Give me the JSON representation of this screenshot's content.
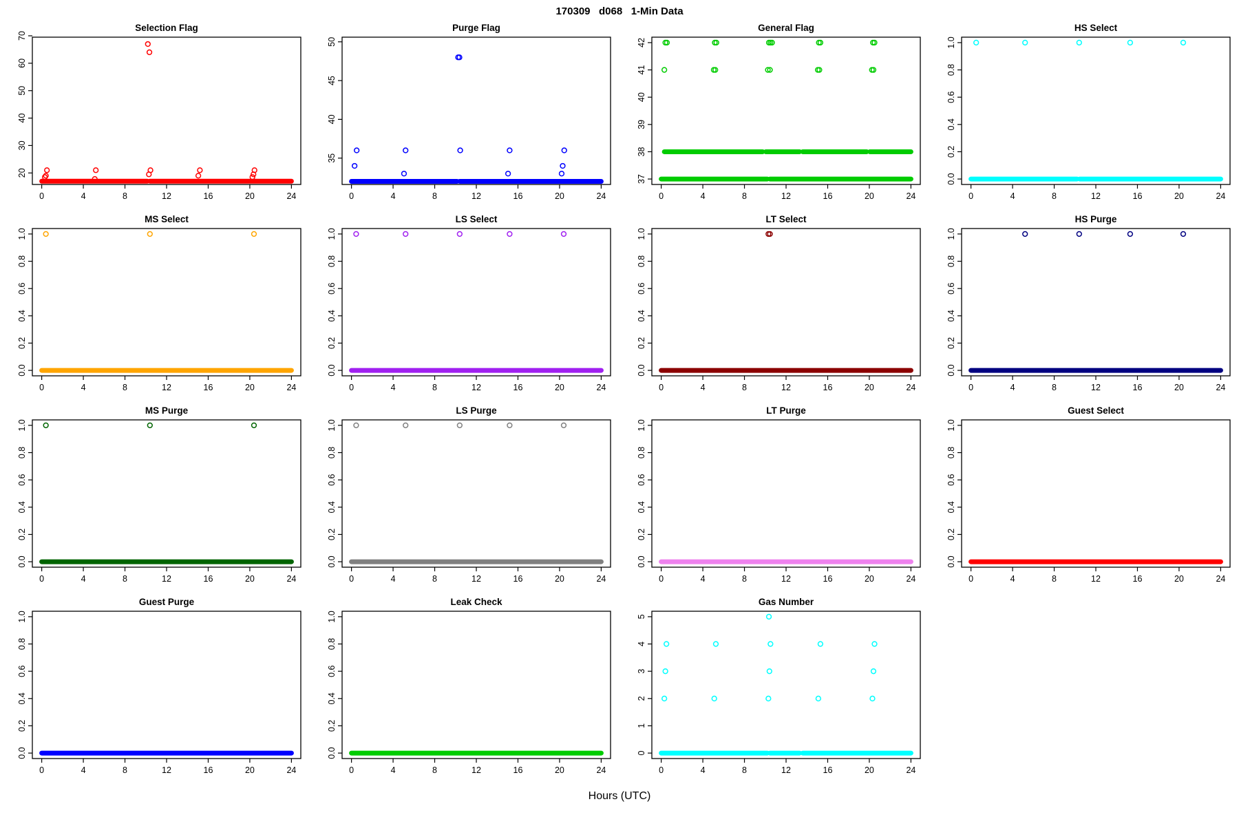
{
  "figure_title": "170309   d068   1-Min Data",
  "x_axis_label": "Hours (UTC)",
  "layout": {
    "grid_columns": 4,
    "grid_rows": 4,
    "background": "#ffffff"
  },
  "chart_data": [
    {
      "type": "scatter",
      "title": "Selection Flag",
      "color": "#FF0000",
      "xlim": [
        -0.9,
        24.9
      ],
      "xticks": [
        0,
        4,
        8,
        12,
        16,
        20,
        24
      ],
      "ylim": [
        15.8,
        69.5
      ],
      "yticks": [
        20,
        30,
        40,
        50,
        60,
        70
      ],
      "ytick_labels": [
        "20",
        "30",
        "40",
        "50",
        "60",
        "70"
      ],
      "baselines": [
        {
          "y": 17,
          "spans": [
            [
              0,
              10.15
            ],
            [
              10.4,
              24
            ]
          ]
        }
      ],
      "points": [
        [
          0.3,
          18.5
        ],
        [
          0.4,
          19
        ],
        [
          0.5,
          21
        ],
        [
          5.1,
          17.8
        ],
        [
          5.2,
          21
        ],
        [
          10.2,
          67
        ],
        [
          10.35,
          64
        ],
        [
          10.3,
          19.5
        ],
        [
          10.45,
          21
        ],
        [
          15.05,
          19
        ],
        [
          15.2,
          21
        ],
        [
          20.25,
          18.5
        ],
        [
          20.35,
          19.5
        ],
        [
          20.45,
          21
        ]
      ]
    },
    {
      "type": "scatter",
      "title": "Purge Flag",
      "color": "#0000FF",
      "xlim": [
        -0.9,
        24.9
      ],
      "xticks": [
        0,
        4,
        8,
        12,
        16,
        20,
        24
      ],
      "ylim": [
        31.6,
        50.6
      ],
      "yticks": [
        35,
        40,
        45,
        50
      ],
      "ytick_labels": [
        "35",
        "40",
        "45",
        "50"
      ],
      "baselines": [
        {
          "y": 32,
          "spans": [
            [
              0,
              10.15
            ],
            [
              10.4,
              24
            ]
          ]
        }
      ],
      "points": [
        [
          0.3,
          34
        ],
        [
          0.5,
          36
        ],
        [
          5.05,
          33
        ],
        [
          5.2,
          36
        ],
        [
          10.25,
          48
        ],
        [
          10.38,
          48
        ],
        [
          10.45,
          36
        ],
        [
          15.05,
          33
        ],
        [
          15.2,
          36
        ],
        [
          20.2,
          33
        ],
        [
          20.3,
          34
        ],
        [
          20.45,
          36
        ]
      ]
    },
    {
      "type": "scatter",
      "title": "General Flag",
      "color": "#00CC00",
      "xlim": [
        -0.9,
        24.9
      ],
      "xticks": [
        0,
        4,
        8,
        12,
        16,
        20,
        24
      ],
      "ylim": [
        36.8,
        42.2
      ],
      "yticks": [
        37,
        38,
        39,
        40,
        41,
        42
      ],
      "ytick_labels": [
        "37",
        "38",
        "39",
        "40",
        "41",
        "42"
      ],
      "baselines": [
        {
          "y": 38,
          "spans": [
            [
              0.3,
              9.75
            ],
            [
              10.05,
              13.3
            ],
            [
              13.6,
              19.75
            ],
            [
              20.05,
              24
            ]
          ]
        },
        {
          "y": 37,
          "spans": [
            [
              0,
              10.2
            ],
            [
              10.45,
              24
            ]
          ]
        }
      ],
      "points": [
        [
          0.4,
          42
        ],
        [
          0.55,
          42
        ],
        [
          5.15,
          42
        ],
        [
          5.3,
          42
        ],
        [
          10.35,
          42
        ],
        [
          10.5,
          42
        ],
        [
          10.65,
          42
        ],
        [
          15.15,
          42
        ],
        [
          15.3,
          42
        ],
        [
          20.35,
          42
        ],
        [
          20.5,
          42
        ],
        [
          0.3,
          41
        ],
        [
          5.05,
          41
        ],
        [
          5.2,
          41
        ],
        [
          10.25,
          41
        ],
        [
          10.45,
          41
        ],
        [
          15.05,
          41
        ],
        [
          15.2,
          41
        ],
        [
          20.25,
          41
        ],
        [
          20.4,
          41
        ]
      ]
    },
    {
      "type": "scatter",
      "title": "HS Select",
      "color": "#00FFFF",
      "xlim": [
        -0.9,
        24.9
      ],
      "xticks": [
        0,
        4,
        8,
        12,
        16,
        20,
        24
      ],
      "ylim": [
        -0.04,
        1.04
      ],
      "yticks": [
        0,
        0.2,
        0.4,
        0.6,
        0.8,
        1.0
      ],
      "ytick_labels": [
        "0.0",
        "0.2",
        "0.4",
        "0.6",
        "0.8",
        "1.0"
      ],
      "baselines": [
        {
          "y": 0,
          "spans": [
            [
              0,
              10.2
            ],
            [
              10.45,
              24
            ]
          ]
        }
      ],
      "points": [
        [
          0.5,
          1
        ],
        [
          5.2,
          1
        ],
        [
          10.4,
          1
        ],
        [
          15.3,
          1
        ],
        [
          20.4,
          1
        ]
      ]
    },
    {
      "type": "scatter",
      "title": "MS Select",
      "color": "#FFA500",
      "xlim": [
        -0.9,
        24.9
      ],
      "xticks": [
        0,
        4,
        8,
        12,
        16,
        20,
        24
      ],
      "ylim": [
        -0.04,
        1.04
      ],
      "yticks": [
        0,
        0.2,
        0.4,
        0.6,
        0.8,
        1.0
      ],
      "ytick_labels": [
        "0.0",
        "0.2",
        "0.4",
        "0.6",
        "0.8",
        "1.0"
      ],
      "baselines": [
        {
          "y": 0,
          "spans": [
            [
              0,
              24
            ]
          ]
        }
      ],
      "points": [
        [
          0.4,
          1
        ],
        [
          10.4,
          1
        ],
        [
          20.4,
          1
        ]
      ]
    },
    {
      "type": "scatter",
      "title": "LS Select",
      "color": "#A020F0",
      "xlim": [
        -0.9,
        24.9
      ],
      "xticks": [
        0,
        4,
        8,
        12,
        16,
        20,
        24
      ],
      "ylim": [
        -0.04,
        1.04
      ],
      "yticks": [
        0,
        0.2,
        0.4,
        0.6,
        0.8,
        1.0
      ],
      "ytick_labels": [
        "0.0",
        "0.2",
        "0.4",
        "0.6",
        "0.8",
        "1.0"
      ],
      "baselines": [
        {
          "y": 0,
          "spans": [
            [
              0,
              24
            ]
          ]
        }
      ],
      "points": [
        [
          0.45,
          1
        ],
        [
          5.2,
          1
        ],
        [
          10.4,
          1
        ],
        [
          15.2,
          1
        ],
        [
          20.4,
          1
        ]
      ]
    },
    {
      "type": "scatter",
      "title": "LT Select",
      "color": "#8B0000",
      "xlim": [
        -0.9,
        24.9
      ],
      "xticks": [
        0,
        4,
        8,
        12,
        16,
        20,
        24
      ],
      "ylim": [
        -0.04,
        1.04
      ],
      "yticks": [
        0,
        0.2,
        0.4,
        0.6,
        0.8,
        1.0
      ],
      "ytick_labels": [
        "0.0",
        "0.2",
        "0.4",
        "0.6",
        "0.8",
        "1.0"
      ],
      "baselines": [
        {
          "y": 0,
          "spans": [
            [
              0,
              24
            ]
          ]
        }
      ],
      "points": [
        [
          10.3,
          1
        ],
        [
          10.45,
          1
        ]
      ]
    },
    {
      "type": "scatter",
      "title": "HS Purge",
      "color": "#000080",
      "xlim": [
        -0.9,
        24.9
      ],
      "xticks": [
        0,
        4,
        8,
        12,
        16,
        20,
        24
      ],
      "ylim": [
        -0.04,
        1.04
      ],
      "yticks": [
        0,
        0.2,
        0.4,
        0.6,
        0.8,
        1.0
      ],
      "ytick_labels": [
        "0.0",
        "0.2",
        "0.4",
        "0.6",
        "0.8",
        "1.0"
      ],
      "baselines": [
        {
          "y": 0,
          "spans": [
            [
              0,
              24
            ]
          ]
        }
      ],
      "points": [
        [
          5.2,
          1
        ],
        [
          10.4,
          1
        ],
        [
          15.3,
          1
        ],
        [
          20.4,
          1
        ]
      ]
    },
    {
      "type": "scatter",
      "title": "MS Purge",
      "color": "#006400",
      "xlim": [
        -0.9,
        24.9
      ],
      "xticks": [
        0,
        4,
        8,
        12,
        16,
        20,
        24
      ],
      "ylim": [
        -0.04,
        1.04
      ],
      "yticks": [
        0,
        0.2,
        0.4,
        0.6,
        0.8,
        1.0
      ],
      "ytick_labels": [
        "0.0",
        "0.2",
        "0.4",
        "0.6",
        "0.8",
        "1.0"
      ],
      "baselines": [
        {
          "y": 0,
          "spans": [
            [
              0,
              24
            ]
          ]
        }
      ],
      "points": [
        [
          0.4,
          1
        ],
        [
          10.4,
          1
        ],
        [
          20.4,
          1
        ]
      ]
    },
    {
      "type": "scatter",
      "title": "LS Purge",
      "color": "#808080",
      "xlim": [
        -0.9,
        24.9
      ],
      "xticks": [
        0,
        4,
        8,
        12,
        16,
        20,
        24
      ],
      "ylim": [
        -0.04,
        1.04
      ],
      "yticks": [
        0,
        0.2,
        0.4,
        0.6,
        0.8,
        1.0
      ],
      "ytick_labels": [
        "0.0",
        "0.2",
        "0.4",
        "0.6",
        "0.8",
        "1.0"
      ],
      "baselines": [
        {
          "y": 0,
          "spans": [
            [
              0,
              24
            ]
          ]
        }
      ],
      "points": [
        [
          0.45,
          1
        ],
        [
          5.2,
          1
        ],
        [
          10.4,
          1
        ],
        [
          15.2,
          1
        ],
        [
          20.4,
          1
        ]
      ]
    },
    {
      "type": "scatter",
      "title": "LT Purge",
      "color": "#EE82EE",
      "xlim": [
        -0.9,
        24.9
      ],
      "xticks": [
        0,
        4,
        8,
        12,
        16,
        20,
        24
      ],
      "ylim": [
        -0.04,
        1.04
      ],
      "yticks": [
        0,
        0.2,
        0.4,
        0.6,
        0.8,
        1.0
      ],
      "ytick_labels": [
        "0.0",
        "0.2",
        "0.4",
        "0.6",
        "0.8",
        "1.0"
      ],
      "baselines": [
        {
          "y": 0,
          "spans": [
            [
              0,
              24
            ]
          ]
        }
      ],
      "points": []
    },
    {
      "type": "scatter",
      "title": "Guest Select",
      "color": "#FF0000",
      "xlim": [
        -0.9,
        24.9
      ],
      "xticks": [
        0,
        4,
        8,
        12,
        16,
        20,
        24
      ],
      "ylim": [
        -0.04,
        1.04
      ],
      "yticks": [
        0,
        0.2,
        0.4,
        0.6,
        0.8,
        1.0
      ],
      "ytick_labels": [
        "0.0",
        "0.2",
        "0.4",
        "0.6",
        "0.8",
        "1.0"
      ],
      "baselines": [
        {
          "y": 0,
          "spans": [
            [
              0,
              24
            ]
          ]
        }
      ],
      "points": []
    },
    {
      "type": "scatter",
      "title": "Guest Purge",
      "color": "#0000FF",
      "xlim": [
        -0.9,
        24.9
      ],
      "xticks": [
        0,
        4,
        8,
        12,
        16,
        20,
        24
      ],
      "ylim": [
        -0.04,
        1.04
      ],
      "yticks": [
        0,
        0.2,
        0.4,
        0.6,
        0.8,
        1.0
      ],
      "ytick_labels": [
        "0.0",
        "0.2",
        "0.4",
        "0.6",
        "0.8",
        "1.0"
      ],
      "baselines": [
        {
          "y": 0,
          "spans": [
            [
              0,
              24
            ]
          ]
        }
      ],
      "points": []
    },
    {
      "type": "scatter",
      "title": "Leak Check",
      "color": "#00CC00",
      "xlim": [
        -0.9,
        24.9
      ],
      "xticks": [
        0,
        4,
        8,
        12,
        16,
        20,
        24
      ],
      "ylim": [
        -0.04,
        1.04
      ],
      "yticks": [
        0,
        0.2,
        0.4,
        0.6,
        0.8,
        1.0
      ],
      "ytick_labels": [
        "0.0",
        "0.2",
        "0.4",
        "0.6",
        "0.8",
        "1.0"
      ],
      "baselines": [
        {
          "y": 0,
          "spans": [
            [
              0,
              24
            ]
          ]
        }
      ],
      "points": []
    },
    {
      "type": "scatter",
      "title": "Gas Number",
      "color": "#00FFFF",
      "xlim": [
        -0.9,
        24.9
      ],
      "xticks": [
        0,
        4,
        8,
        12,
        16,
        20,
        24
      ],
      "ylim": [
        -0.2,
        5.2
      ],
      "yticks": [
        0,
        1,
        2,
        3,
        4,
        5
      ],
      "ytick_labels": [
        "0",
        "1",
        "2",
        "3",
        "4",
        "5"
      ],
      "baselines": [
        {
          "y": 0,
          "spans": [
            [
              0,
              10.2
            ],
            [
              10.45,
              13.3
            ],
            [
              13.6,
              24
            ]
          ]
        }
      ],
      "points": [
        [
          0.3,
          2
        ],
        [
          0.4,
          3
        ],
        [
          0.5,
          4
        ],
        [
          5.1,
          2
        ],
        [
          5.25,
          4
        ],
        [
          10.3,
          2
        ],
        [
          10.4,
          3
        ],
        [
          10.5,
          4
        ],
        [
          10.35,
          5
        ],
        [
          15.1,
          2
        ],
        [
          15.3,
          4
        ],
        [
          20.3,
          2
        ],
        [
          20.4,
          3
        ],
        [
          20.5,
          4
        ]
      ]
    }
  ]
}
